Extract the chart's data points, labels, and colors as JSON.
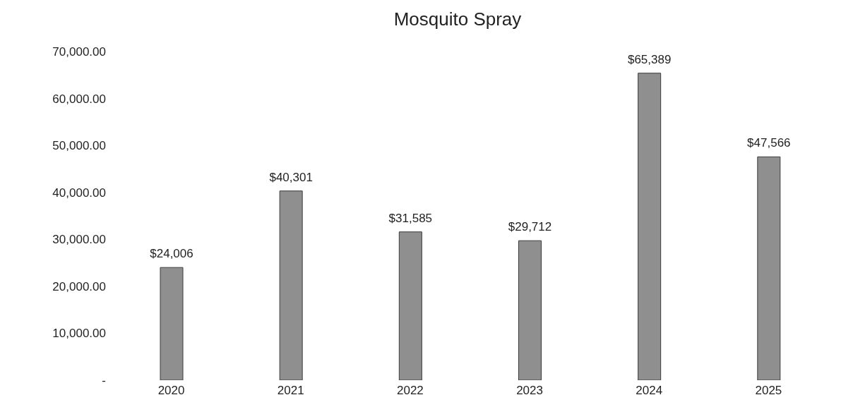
{
  "chart_data": {
    "type": "bar",
    "title": "Mosquito Spray",
    "categories": [
      "2020",
      "2021",
      "2022",
      "2023",
      "2024",
      "2025"
    ],
    "values": [
      24006,
      40301,
      31585,
      29712,
      65389,
      47566
    ],
    "value_labels": [
      "$24,006",
      "$40,301",
      "$31,585",
      "$29,712",
      "$65,389",
      "$47,566"
    ],
    "color": "#8f8f8f",
    "ylim": [
      0,
      70000
    ],
    "yticks": [
      {
        "value": 0,
        "label": "-"
      },
      {
        "value": 10000,
        "label": "10,000.00"
      },
      {
        "value": 20000,
        "label": "20,000.00"
      },
      {
        "value": 30000,
        "label": "30,000.00"
      },
      {
        "value": 40000,
        "label": "40,000.00"
      },
      {
        "value": 50000,
        "label": "50,000.00"
      },
      {
        "value": 60000,
        "label": "60,000.00"
      },
      {
        "value": 70000,
        "label": "70,000.00"
      }
    ],
    "grid": false,
    "legend": false
  }
}
